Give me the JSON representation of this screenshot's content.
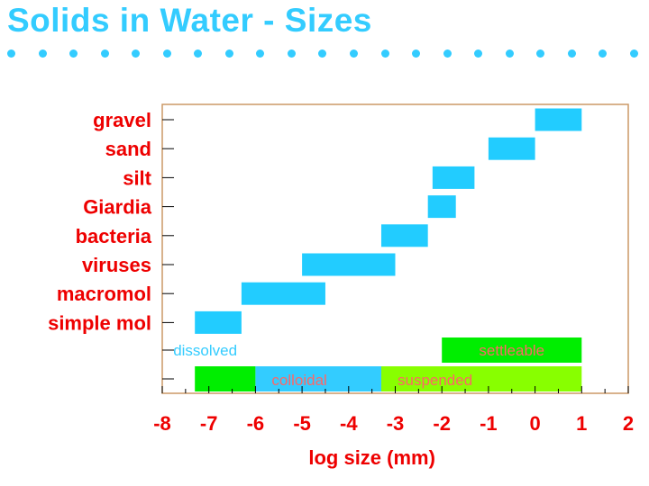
{
  "slide": {
    "title": "Solids in Water - Sizes"
  },
  "chart_data": {
    "type": "range-bar",
    "xlabel": "log size (mm)",
    "xlim": [
      -8,
      2
    ],
    "x_ticks": [
      "-8",
      "-7",
      "-6",
      "-5",
      "-4",
      "-3",
      "-2",
      "-1",
      "0",
      "1",
      "2"
    ],
    "categories": [
      "gravel",
      "sand",
      "silt",
      "Giardia",
      "bacteria",
      "viruses",
      "macromol",
      "simple mol"
    ],
    "ranges": [
      {
        "category": "gravel",
        "min": 0.0,
        "max": 1.0
      },
      {
        "category": "sand",
        "min": -1.0,
        "max": 0.0
      },
      {
        "category": "silt",
        "min": -2.2,
        "max": -1.3
      },
      {
        "category": "Giardia",
        "min": -2.3,
        "max": -1.7
      },
      {
        "category": "bacteria",
        "min": -3.3,
        "max": -2.3
      },
      {
        "category": "viruses",
        "min": -5.0,
        "max": -3.0
      },
      {
        "category": "macromol",
        "min": -6.3,
        "max": -4.5
      },
      {
        "category": "simple mol",
        "min": -7.3,
        "max": -6.3
      }
    ],
    "classes": [
      {
        "label": "dissolved",
        "min": -7.3,
        "max": -6.0,
        "row": 1,
        "bar": false,
        "bar_color": "",
        "label_color": "#33ccff",
        "label_anchor": "start"
      },
      {
        "label": "settleable",
        "min": -2.0,
        "max": 1.0,
        "row": 1,
        "bar": true,
        "bar_color": "#00ee00",
        "label_color": "#ff6666",
        "label_anchor": "middle"
      },
      {
        "label": "",
        "min": -7.3,
        "max": -6.0,
        "row": 2,
        "bar": true,
        "bar_color": "#00ee00",
        "label_color": "",
        "label_anchor": "middle"
      },
      {
        "label": "colloidal",
        "min": -6.0,
        "max": -3.3,
        "row": 2,
        "bar": true,
        "bar_color": "#33ccff",
        "label_color": "#ff6666",
        "label_anchor": "start"
      },
      {
        "label": "suspended",
        "min": -3.3,
        "max": 1.0,
        "row": 2,
        "bar": true,
        "bar_color": "#88ff00",
        "label_color": "#ff6666",
        "label_anchor": "start"
      }
    ],
    "colors": {
      "title": "#33ccff",
      "category_labels": "#ee0000",
      "tick_labels": "#ee0000",
      "xlabel": "#ee0000",
      "range_bars": "#22ccff",
      "frame": "#cc9966"
    }
  }
}
